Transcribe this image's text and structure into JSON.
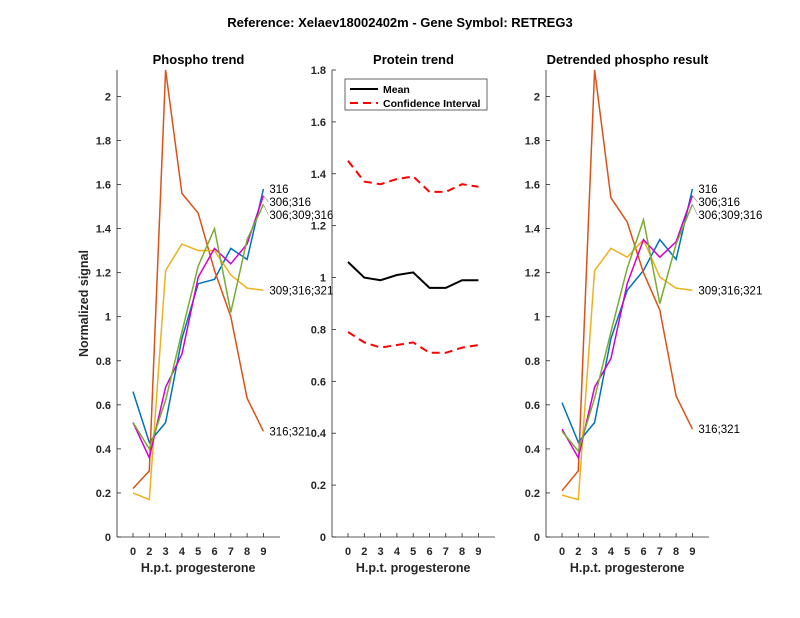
{
  "figure": {
    "title": "Reference:  Xelaev18002402m - Gene Symbol:  RETREG3"
  },
  "chart_data": [
    {
      "type": "line",
      "title": "Phospho trend",
      "xlabel": "H.p.t. progesterone",
      "ylabel": "Normalized signal",
      "categories": [
        "0",
        "2",
        "3",
        "4",
        "5",
        "6",
        "7",
        "8",
        "9"
      ],
      "ylim": [
        0,
        2.12
      ],
      "yticks": [
        "0",
        "0.2",
        "0.4",
        "0.6",
        "0.8",
        "1",
        "1.2",
        "1.4",
        "1.6",
        "1.8",
        "2"
      ],
      "grid": false,
      "series": [
        {
          "name": "316",
          "color": "#0072BD",
          "values": [
            0.66,
            0.43,
            0.52,
            0.9,
            1.15,
            1.17,
            1.31,
            1.26,
            1.58
          ]
        },
        {
          "name": "316;321",
          "color": "#D95319",
          "values": [
            0.22,
            0.3,
            2.12,
            1.56,
            1.47,
            1.21,
            1.0,
            0.63,
            0.48
          ]
        },
        {
          "name": "309;316;321",
          "color": "#EDB120",
          "values": [
            0.2,
            0.17,
            1.21,
            1.33,
            1.3,
            1.3,
            1.19,
            1.13,
            1.12
          ]
        },
        {
          "name": "306;316",
          "color": "#D000D0",
          "values": [
            0.52,
            0.36,
            0.68,
            0.83,
            1.18,
            1.31,
            1.24,
            1.33,
            1.55
          ]
        },
        {
          "name": "306;309;316",
          "color": "#77AC30",
          "values": [
            0.52,
            0.4,
            0.62,
            0.93,
            1.23,
            1.4,
            1.02,
            1.35,
            1.51
          ]
        }
      ]
    },
    {
      "type": "line",
      "title": "Protein trend",
      "xlabel": "H.p.t. progesterone",
      "ylabel": "",
      "categories": [
        "0",
        "2",
        "3",
        "4",
        "5",
        "6",
        "7",
        "8",
        "9"
      ],
      "ylim": [
        0,
        1.8
      ],
      "yticks": [
        "0",
        "0.2",
        "0.4",
        "0.6",
        "0.8",
        "1",
        "1.2",
        "1.4",
        "1.6",
        "1.8"
      ],
      "grid": false,
      "legend": {
        "placement": "top",
        "entries": [
          "Mean",
          "Confidence Interval"
        ]
      },
      "series": [
        {
          "name": "Mean",
          "color": "#000000",
          "style": "solid",
          "values": [
            1.06,
            1.0,
            0.99,
            1.01,
            1.02,
            0.96,
            0.96,
            0.99,
            0.99
          ]
        },
        {
          "name": "Confidence Interval",
          "color": "#FF0000",
          "style": "dashed",
          "values": [
            1.45,
            1.37,
            1.36,
            1.38,
            1.39,
            1.33,
            1.33,
            1.36,
            1.35
          ]
        },
        {
          "name": "Confidence Interval (lower)",
          "color": "#FF0000",
          "style": "dashed",
          "values": [
            0.79,
            0.75,
            0.73,
            0.74,
            0.75,
            0.71,
            0.71,
            0.73,
            0.74
          ]
        }
      ]
    },
    {
      "type": "line",
      "title": "Detrended phospho result",
      "xlabel": "H.p.t. progesterone",
      "ylabel": "",
      "categories": [
        "0",
        "2",
        "3",
        "4",
        "5",
        "6",
        "7",
        "8",
        "9"
      ],
      "ylim": [
        0,
        2.12
      ],
      "yticks": [
        "0",
        "0.2",
        "0.4",
        "0.6",
        "0.8",
        "1",
        "1.2",
        "1.4",
        "1.6",
        "1.8",
        "2"
      ],
      "grid": false,
      "series": [
        {
          "name": "316",
          "color": "#0072BD",
          "values": [
            0.61,
            0.43,
            0.52,
            0.9,
            1.12,
            1.21,
            1.35,
            1.26,
            1.58
          ]
        },
        {
          "name": "316;321",
          "color": "#D95319",
          "values": [
            0.21,
            0.3,
            2.12,
            1.54,
            1.43,
            1.2,
            1.03,
            0.64,
            0.49
          ]
        },
        {
          "name": "309;316;321",
          "color": "#EDB120",
          "values": [
            0.19,
            0.17,
            1.21,
            1.31,
            1.27,
            1.35,
            1.18,
            1.13,
            1.12
          ]
        },
        {
          "name": "306;316",
          "color": "#D000D0",
          "values": [
            0.49,
            0.36,
            0.68,
            0.81,
            1.15,
            1.35,
            1.27,
            1.34,
            1.55
          ]
        },
        {
          "name": "306;309;316",
          "color": "#77AC30",
          "values": [
            0.48,
            0.39,
            0.63,
            0.93,
            1.22,
            1.44,
            1.06,
            1.33,
            1.51
          ]
        }
      ]
    }
  ]
}
